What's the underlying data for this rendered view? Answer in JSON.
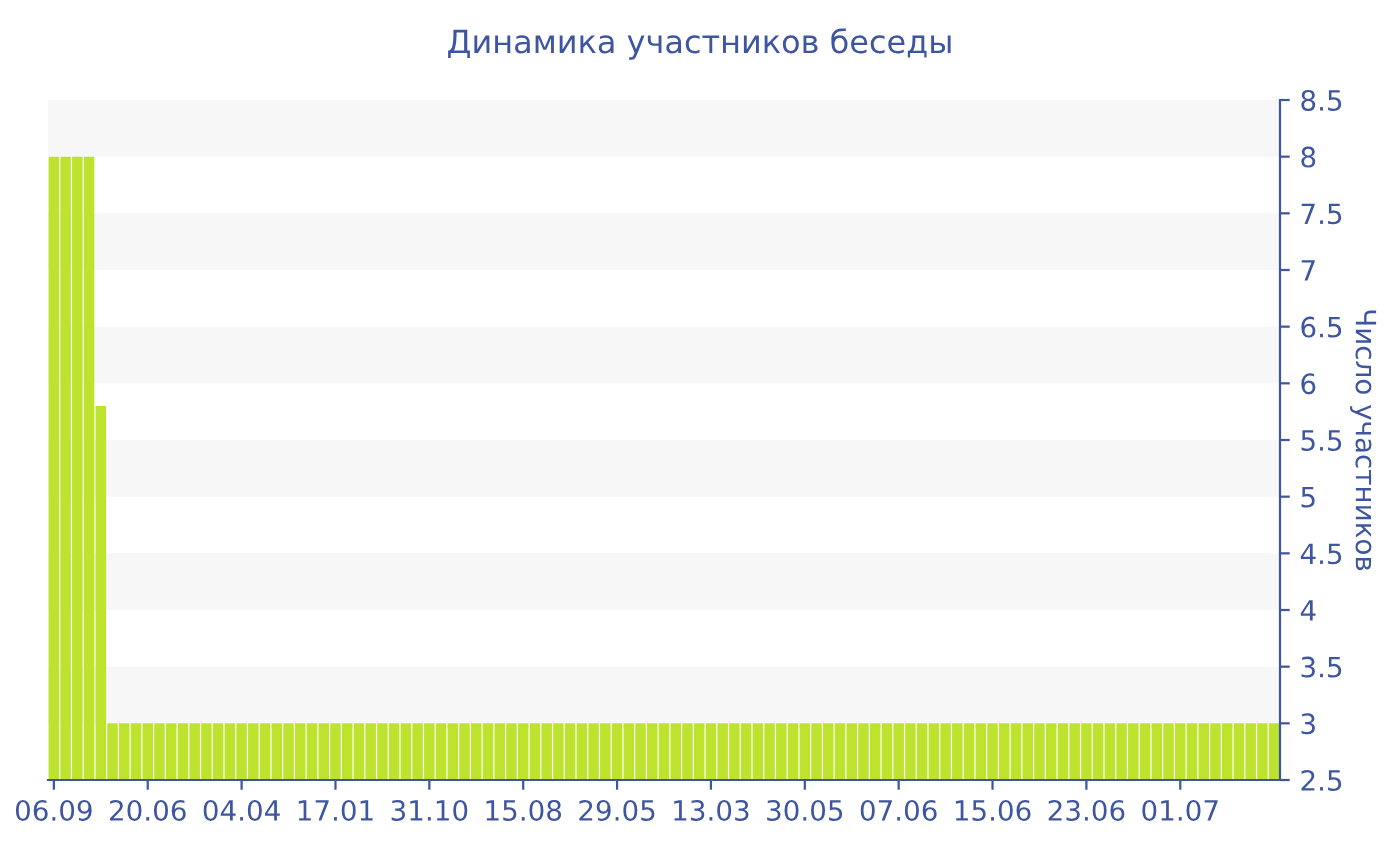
{
  "chart_data": {
    "type": "bar",
    "title": "Динамика участников беседы",
    "ylabel": "Число участников",
    "categories": [
      "06.09",
      null,
      null,
      null,
      null,
      null,
      null,
      null,
      "20.06",
      null,
      null,
      null,
      null,
      null,
      null,
      null,
      "04.04",
      null,
      null,
      null,
      null,
      null,
      null,
      null,
      "17.01",
      null,
      null,
      null,
      null,
      null,
      null,
      null,
      "31.10",
      null,
      null,
      null,
      null,
      null,
      null,
      null,
      "15.08",
      null,
      null,
      null,
      null,
      null,
      null,
      null,
      "29.05",
      null,
      null,
      null,
      null,
      null,
      null,
      null,
      "13.03",
      null,
      null,
      null,
      null,
      null,
      null,
      null,
      "30.05",
      null,
      null,
      null,
      null,
      null,
      null,
      null,
      "07.06",
      null,
      null,
      null,
      null,
      null,
      null,
      null,
      "15.06",
      null,
      null,
      null,
      null,
      null,
      null,
      null,
      "23.06",
      null,
      null,
      null,
      null,
      null,
      null,
      null,
      "01.07",
      null,
      null,
      null,
      null,
      null,
      null,
      null,
      null
    ],
    "values": [
      8,
      8,
      8,
      8,
      5.8,
      3,
      3,
      3,
      3,
      3,
      3,
      3,
      3,
      3,
      3,
      3,
      3,
      3,
      3,
      3,
      3,
      3,
      3,
      3,
      3,
      3,
      3,
      3,
      3,
      3,
      3,
      3,
      3,
      3,
      3,
      3,
      3,
      3,
      3,
      3,
      3,
      3,
      3,
      3,
      3,
      3,
      3,
      3,
      3,
      3,
      3,
      3,
      3,
      3,
      3,
      3,
      3,
      3,
      3,
      3,
      3,
      3,
      3,
      3,
      3,
      3,
      3,
      3,
      3,
      3,
      3,
      3,
      3,
      3,
      3,
      3,
      3,
      3,
      3,
      3,
      3,
      3,
      3,
      3,
      3,
      3,
      3,
      3,
      3,
      3,
      3,
      3,
      3,
      3,
      3,
      3,
      3,
      3,
      3,
      3,
      3,
      3,
      3,
      3,
      3
    ],
    "color": "#bde32e",
    "ylim": [
      2.5,
      8.5
    ],
    "yticks": [
      2.5,
      3,
      3.5,
      4,
      4.5,
      5,
      5.5,
      6,
      6.5,
      7,
      7.5,
      8,
      8.5
    ],
    "bands": [
      {
        "axis": "y",
        "from": 3,
        "to": 3.5,
        "color": "#f7f7f7"
      },
      {
        "axis": "y",
        "from": 4,
        "to": 4.5,
        "color": "#f7f7f7"
      },
      {
        "axis": "y",
        "from": 5,
        "to": 5.5,
        "color": "#f7f7f7"
      },
      {
        "axis": "y",
        "from": 6,
        "to": 6.5,
        "color": "#f7f7f7"
      },
      {
        "axis": "y",
        "from": 7,
        "to": 7.5,
        "color": "#f7f7f7"
      },
      {
        "axis": "y",
        "from": 8,
        "to": 8.5,
        "color": "#f7f7f7"
      }
    ]
  }
}
